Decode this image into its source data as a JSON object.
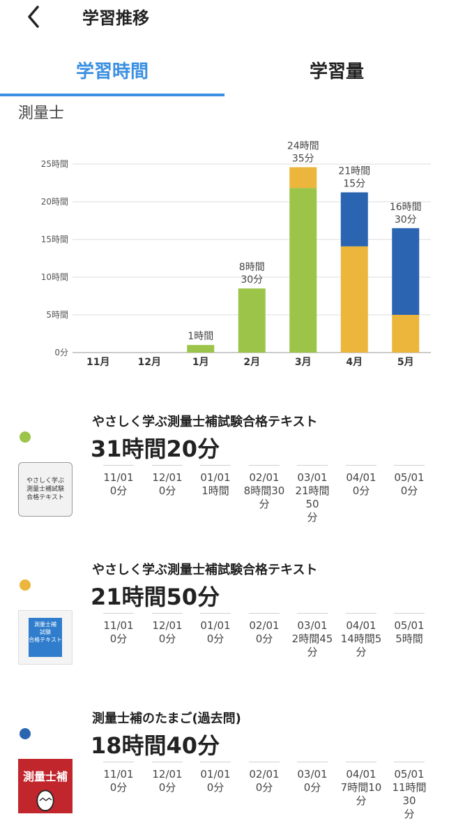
{
  "header": {
    "title": "学習推移"
  },
  "tabs": [
    {
      "label": "学習時間",
      "active": true
    },
    {
      "label": "学習量",
      "active": false
    }
  ],
  "subject": "測量士",
  "colors": {
    "accent": "#3b8fe0",
    "series": [
      "#9bc448",
      "#ecb53c",
      "#2b64b0"
    ]
  },
  "chart_data": {
    "type": "bar",
    "stacked": true,
    "categories": [
      "11月",
      "12月",
      "1月",
      "2月",
      "3月",
      "4月",
      "5月"
    ],
    "yticks": [
      "0分",
      "5時間",
      "10時間",
      "15時間",
      "20時間",
      "25時間"
    ],
    "ylim": [
      0,
      25
    ],
    "series": [
      {
        "values": [
          0,
          0,
          1,
          8.5,
          21.833,
          0,
          0
        ]
      },
      {
        "values": [
          0,
          0,
          0,
          0,
          2.75,
          14.083,
          5
        ]
      },
      {
        "values": [
          0,
          0,
          0,
          0,
          0,
          7.167,
          11.5
        ]
      }
    ],
    "totals": [
      "",
      "",
      "1時間",
      "8時間\n30分",
      "24時間\n35分",
      "21時間\n15分",
      "16時間\n30分"
    ]
  },
  "items": [
    {
      "name": "やさしく学ぶ測量士補試験合格テキスト",
      "total": "31時間20分",
      "thumb_text": "やさしく学ぶ\n測量士補試験\n合格テキスト",
      "months": [
        {
          "date": "11/01",
          "value": "0分"
        },
        {
          "date": "12/01",
          "value": "0分"
        },
        {
          "date": "01/01",
          "value": "1時間"
        },
        {
          "date": "02/01",
          "value": "8時間30\n分"
        },
        {
          "date": "03/01",
          "value": "21時間50\n分"
        },
        {
          "date": "04/01",
          "value": "0分"
        },
        {
          "date": "05/01",
          "value": "0分"
        }
      ]
    },
    {
      "name": "やさしく学ぶ測量士補試験合格テキスト",
      "total": "21時間50分",
      "thumb_text": "測量士補\n試験\n合格テキスト",
      "months": [
        {
          "date": "11/01",
          "value": "0分"
        },
        {
          "date": "12/01",
          "value": "0分"
        },
        {
          "date": "01/01",
          "value": "0分"
        },
        {
          "date": "02/01",
          "value": "0分"
        },
        {
          "date": "03/01",
          "value": "2時間45\n分"
        },
        {
          "date": "04/01",
          "value": "14時間5\n分"
        },
        {
          "date": "05/01",
          "value": "5時間"
        }
      ]
    },
    {
      "name": "測量士補のたまご(過去問)",
      "total": "18時間40分",
      "thumb_text": "測量士補",
      "months": [
        {
          "date": "11/01",
          "value": "0分"
        },
        {
          "date": "12/01",
          "value": "0分"
        },
        {
          "date": "01/01",
          "value": "0分"
        },
        {
          "date": "02/01",
          "value": "0分"
        },
        {
          "date": "03/01",
          "value": "0分"
        },
        {
          "date": "04/01",
          "value": "7時間10\n分"
        },
        {
          "date": "05/01",
          "value": "11時間30\n分"
        }
      ]
    }
  ]
}
